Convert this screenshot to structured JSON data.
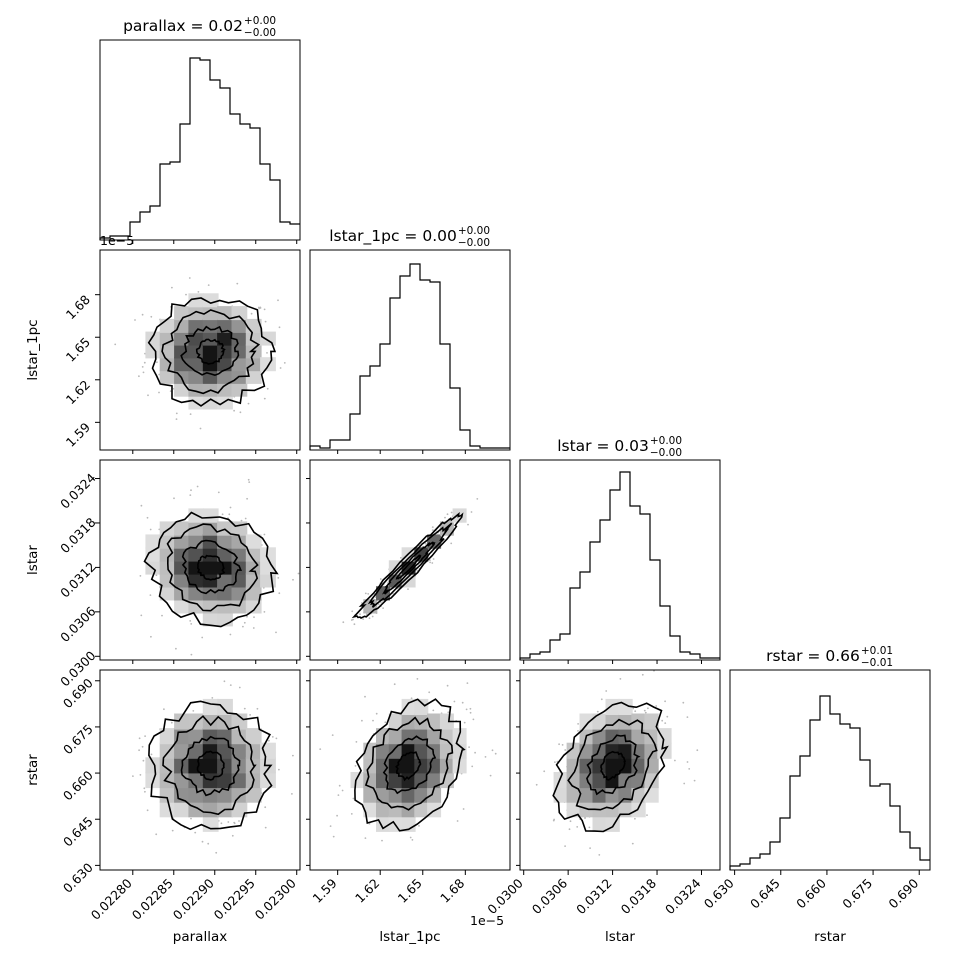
{
  "chart_data": {
    "type": "corner",
    "parameters": [
      {
        "name": "parallax",
        "range": [
          0.02276,
          0.023004
        ],
        "ticks": [
          0.0228,
          0.02285,
          0.0229,
          0.02295,
          0.023
        ],
        "tick_labels": [
          "0.02280",
          "0.02285",
          "0.02290",
          "0.02295",
          "0.02300"
        ],
        "offset_text": "",
        "title_main": "parallax = 0.02",
        "title_sup": "+0.00",
        "title_sub": "−0.00",
        "mean": 0.022895,
        "sd": 3.5e-05
      },
      {
        "name": "lstar_1pc",
        "range": [
          1.5705,
          1.7115
        ],
        "ticks": [
          1.59,
          1.62,
          1.65,
          1.68
        ],
        "tick_labels": [
          "1.59",
          "1.62",
          "1.65",
          "1.68"
        ],
        "offset_text": "1e−5",
        "title_main": "lstar_1pc = 0.00",
        "title_sup": "+0.00",
        "title_sub": "−0.00",
        "mean": 1.64,
        "sd": 0.018
      },
      {
        "name": "lstar",
        "range": [
          0.02995,
          0.03265
        ],
        "ticks": [
          0.03,
          0.0306,
          0.0312,
          0.0318,
          0.0324
        ],
        "tick_labels": [
          "0.0300",
          "0.0306",
          "0.0312",
          "0.0318",
          "0.0324"
        ],
        "offset_text": "",
        "title_main": "lstar = 0.03",
        "title_sup": "+0.00",
        "title_sub": "−0.00",
        "mean": 0.0312,
        "sd": 0.00035
      },
      {
        "name": "rstar",
        "range": [
          0.6285,
          0.6935
        ],
        "ticks": [
          0.63,
          0.645,
          0.66,
          0.675,
          0.69
        ],
        "tick_labels": [
          "0.630",
          "0.645",
          "0.660",
          "0.675",
          "0.690"
        ],
        "offset_text": "",
        "title_main": "rstar = 0.66",
        "title_sup": "+0.01",
        "title_sub": "−0.01",
        "mean": 0.6625,
        "sd": 0.0095
      }
    ],
    "histograms": [
      {
        "param": "parallax",
        "values": [
          0.01,
          0.02,
          0.02,
          0.09,
          0.14,
          0.17,
          0.38,
          0.39,
          0.58,
          0.91,
          0.9,
          0.8,
          0.76,
          0.63,
          0.58,
          0.56,
          0.38,
          0.3,
          0.09,
          0.08
        ]
      },
      {
        "param": "lstar_1pc",
        "values": [
          0.02,
          0.01,
          0.05,
          0.05,
          0.18,
          0.37,
          0.42,
          0.53,
          0.76,
          0.87,
          0.93,
          0.85,
          0.84,
          0.53,
          0.31,
          0.1,
          0.02,
          0.01,
          0.01,
          0.01
        ]
      },
      {
        "param": "lstar",
        "values": [
          0.01,
          0.03,
          0.04,
          0.1,
          0.13,
          0.36,
          0.44,
          0.59,
          0.7,
          0.85,
          0.94,
          0.77,
          0.73,
          0.5,
          0.27,
          0.12,
          0.04,
          0.03,
          0.01,
          0.01
        ]
      },
      {
        "param": "rstar",
        "values": [
          0.02,
          0.03,
          0.06,
          0.08,
          0.14,
          0.26,
          0.47,
          0.57,
          0.75,
          0.87,
          0.78,
          0.73,
          0.71,
          0.55,
          0.42,
          0.43,
          0.32,
          0.19,
          0.11,
          0.05
        ]
      }
    ],
    "contours": [
      {
        "x": "parallax",
        "y": "lstar_1pc",
        "correlation": 0.0
      },
      {
        "x": "parallax",
        "y": "lstar",
        "correlation": -0.1
      },
      {
        "x": "lstar_1pc",
        "y": "lstar",
        "correlation": 0.97
      },
      {
        "x": "parallax",
        "y": "rstar",
        "correlation": 0.0
      },
      {
        "x": "lstar_1pc",
        "y": "rstar",
        "correlation": 0.25
      },
      {
        "x": "lstar",
        "y": "rstar",
        "correlation": 0.3
      }
    ],
    "grid": false,
    "legend": "none"
  }
}
